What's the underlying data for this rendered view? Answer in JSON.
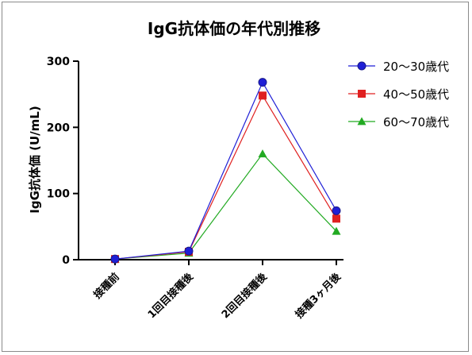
{
  "chart_data": {
    "type": "line",
    "title": "IgG抗体価の年代別推移",
    "ylabel": "IgG抗体価 (U/mL)",
    "xlabel": "",
    "ylim": [
      0,
      300
    ],
    "yticks": [
      "0",
      "100",
      "200",
      "300"
    ],
    "ytick_values": [
      0,
      100,
      200,
      300
    ],
    "categories": [
      "接種前",
      "1回目接種後",
      "2回目接種後",
      "接種3ヶ月後"
    ],
    "grid": false,
    "legend_position": "top-right",
    "series": [
      {
        "name": "20〜30歳代",
        "marker": "circle",
        "color": "#1f1fd6",
        "values": [
          1,
          13,
          268,
          74
        ]
      },
      {
        "name": "40〜50歳代",
        "marker": "square",
        "color": "#e02020",
        "values": [
          1,
          12,
          248,
          62
        ]
      },
      {
        "name": "60〜70歳代",
        "marker": "triangle",
        "color": "#22aa22",
        "values": [
          1,
          10,
          160,
          43
        ]
      }
    ]
  }
}
